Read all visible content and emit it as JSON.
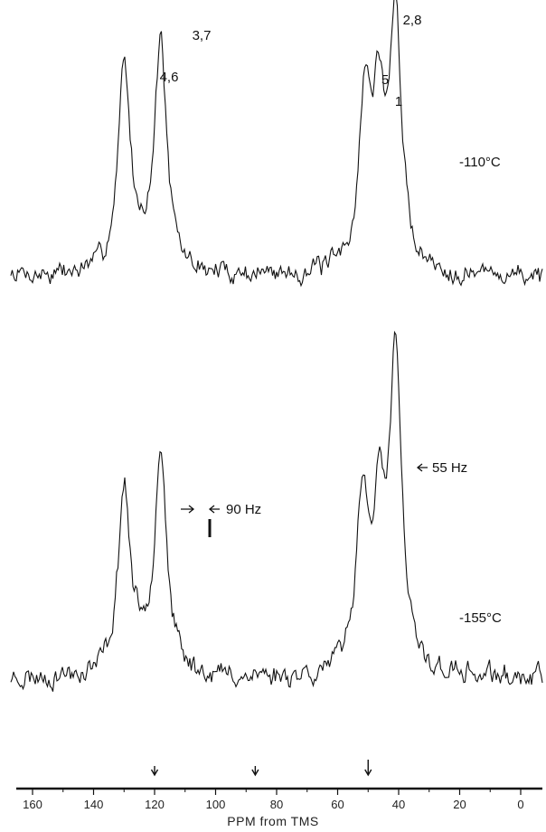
{
  "chart_data": {
    "type": "line",
    "xlabel": "PPM from TMS",
    "xlim": [
      170,
      -5
    ],
    "xticks": [
      160,
      140,
      120,
      100,
      80,
      60,
      40,
      20,
      0
    ],
    "grid": false,
    "axis_arrows_ppm": [
      120,
      87,
      50
    ],
    "spectra": [
      {
        "name": "-110°C",
        "peak_labels": [
          {
            "text": "4,6",
            "ppm": 130
          },
          {
            "text": "3,7",
            "ppm": 118
          },
          {
            "text": "5",
            "ppm": 51
          },
          {
            "text": "1",
            "ppm": 47
          },
          {
            "text": "2,8",
            "ppm": 41
          }
        ],
        "peaks": [
          {
            "ppm": 130,
            "height": 0.83
          },
          {
            "ppm": 118,
            "height": 0.92
          },
          {
            "ppm": 51,
            "height": 0.66
          },
          {
            "ppm": 46.5,
            "height": 0.58
          },
          {
            "ppm": 41,
            "height": 1.0
          }
        ],
        "noise": 0.035
      },
      {
        "name": "-155°C",
        "peak_labels": [],
        "annotations": [
          {
            "text": "90 Hz",
            "ppm": 118
          },
          {
            "text": "55 Hz",
            "ppm": 39
          }
        ],
        "peaks": [
          {
            "ppm": 130,
            "height": 0.58
          },
          {
            "ppm": 118,
            "height": 0.71
          },
          {
            "ppm": 52,
            "height": 0.55
          },
          {
            "ppm": 46.5,
            "height": 0.43
          },
          {
            "ppm": 41,
            "height": 1.0
          }
        ],
        "noise": 0.03
      }
    ]
  }
}
